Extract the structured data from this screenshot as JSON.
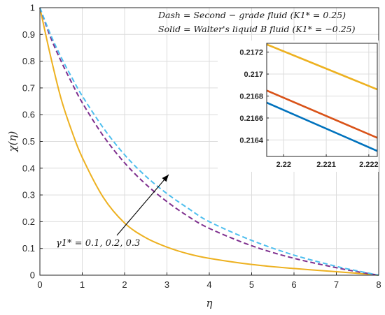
{
  "chart_data": {
    "type": "line",
    "xlabel": "η",
    "ylabel": "χ(η)",
    "xlim": [
      0,
      8
    ],
    "ylim": [
      0,
      1
    ],
    "grid": true,
    "xticks": [
      "0",
      "1",
      "2",
      "3",
      "4",
      "5",
      "6",
      "7",
      "8"
    ],
    "yticks": [
      "0",
      "0.1",
      "0.2",
      "0.3",
      "0.4",
      "0.5",
      "0.6",
      "0.7",
      "0.8",
      "0.9",
      "1"
    ],
    "legend_notes": [
      "Dash = Second − grade fluid (K1* = 0.25)",
      "Solid = Walter's liquid B fluid (K1* = −0.25)"
    ],
    "annotation": "γ1* = 0.1, 0.2, 0.3",
    "series": [
      {
        "style": "solid",
        "color": "#EDB120",
        "x": [
          0,
          0.25,
          0.5,
          0.75,
          1,
          1.5,
          2,
          2.5,
          3,
          3.5,
          4,
          5,
          6,
          7,
          7.5,
          8
        ],
        "y": [
          1.0,
          0.82,
          0.66,
          0.54,
          0.44,
          0.29,
          0.195,
          0.14,
          0.105,
          0.08,
          0.063,
          0.04,
          0.025,
          0.013,
          0.007,
          0.0
        ]
      },
      {
        "style": "dashed",
        "color": "#7E2F8E",
        "x": [
          0,
          0.25,
          0.5,
          0.75,
          1,
          1.5,
          2,
          2.5,
          3,
          3.5,
          4,
          5,
          6,
          7,
          7.5,
          8
        ],
        "y": [
          1.0,
          0.89,
          0.8,
          0.72,
          0.645,
          0.52,
          0.42,
          0.34,
          0.275,
          0.22,
          0.175,
          0.11,
          0.063,
          0.028,
          0.013,
          0.0
        ]
      },
      {
        "style": "dashed",
        "color": "#4DBEEE",
        "x": [
          0,
          0.25,
          0.5,
          0.75,
          1,
          1.5,
          2,
          2.5,
          3,
          3.5,
          4,
          5,
          6,
          7,
          7.5,
          8
        ],
        "y": [
          1.0,
          0.9,
          0.815,
          0.74,
          0.67,
          0.55,
          0.45,
          0.37,
          0.305,
          0.25,
          0.2,
          0.13,
          0.075,
          0.033,
          0.016,
          0.0
        ]
      }
    ],
    "inset": {
      "xlim": [
        2.2196,
        2.2222
      ],
      "ylim": [
        0.21625,
        0.21728
      ],
      "xticks": [
        "2.22",
        "2.221",
        "2.222"
      ],
      "yticks": [
        "0.2164",
        "0.2166",
        "0.2168",
        "0.217",
        "0.2172"
      ],
      "series": [
        {
          "color": "#EDB120",
          "x": [
            2.2196,
            2.2222
          ],
          "y": [
            0.21727,
            0.21686
          ]
        },
        {
          "color": "#D95319",
          "x": [
            2.2196,
            2.2222
          ],
          "y": [
            0.21685,
            0.21642
          ]
        },
        {
          "color": "#0072BD",
          "x": [
            2.2196,
            2.2222
          ],
          "y": [
            0.21674,
            0.2163
          ]
        }
      ]
    }
  }
}
